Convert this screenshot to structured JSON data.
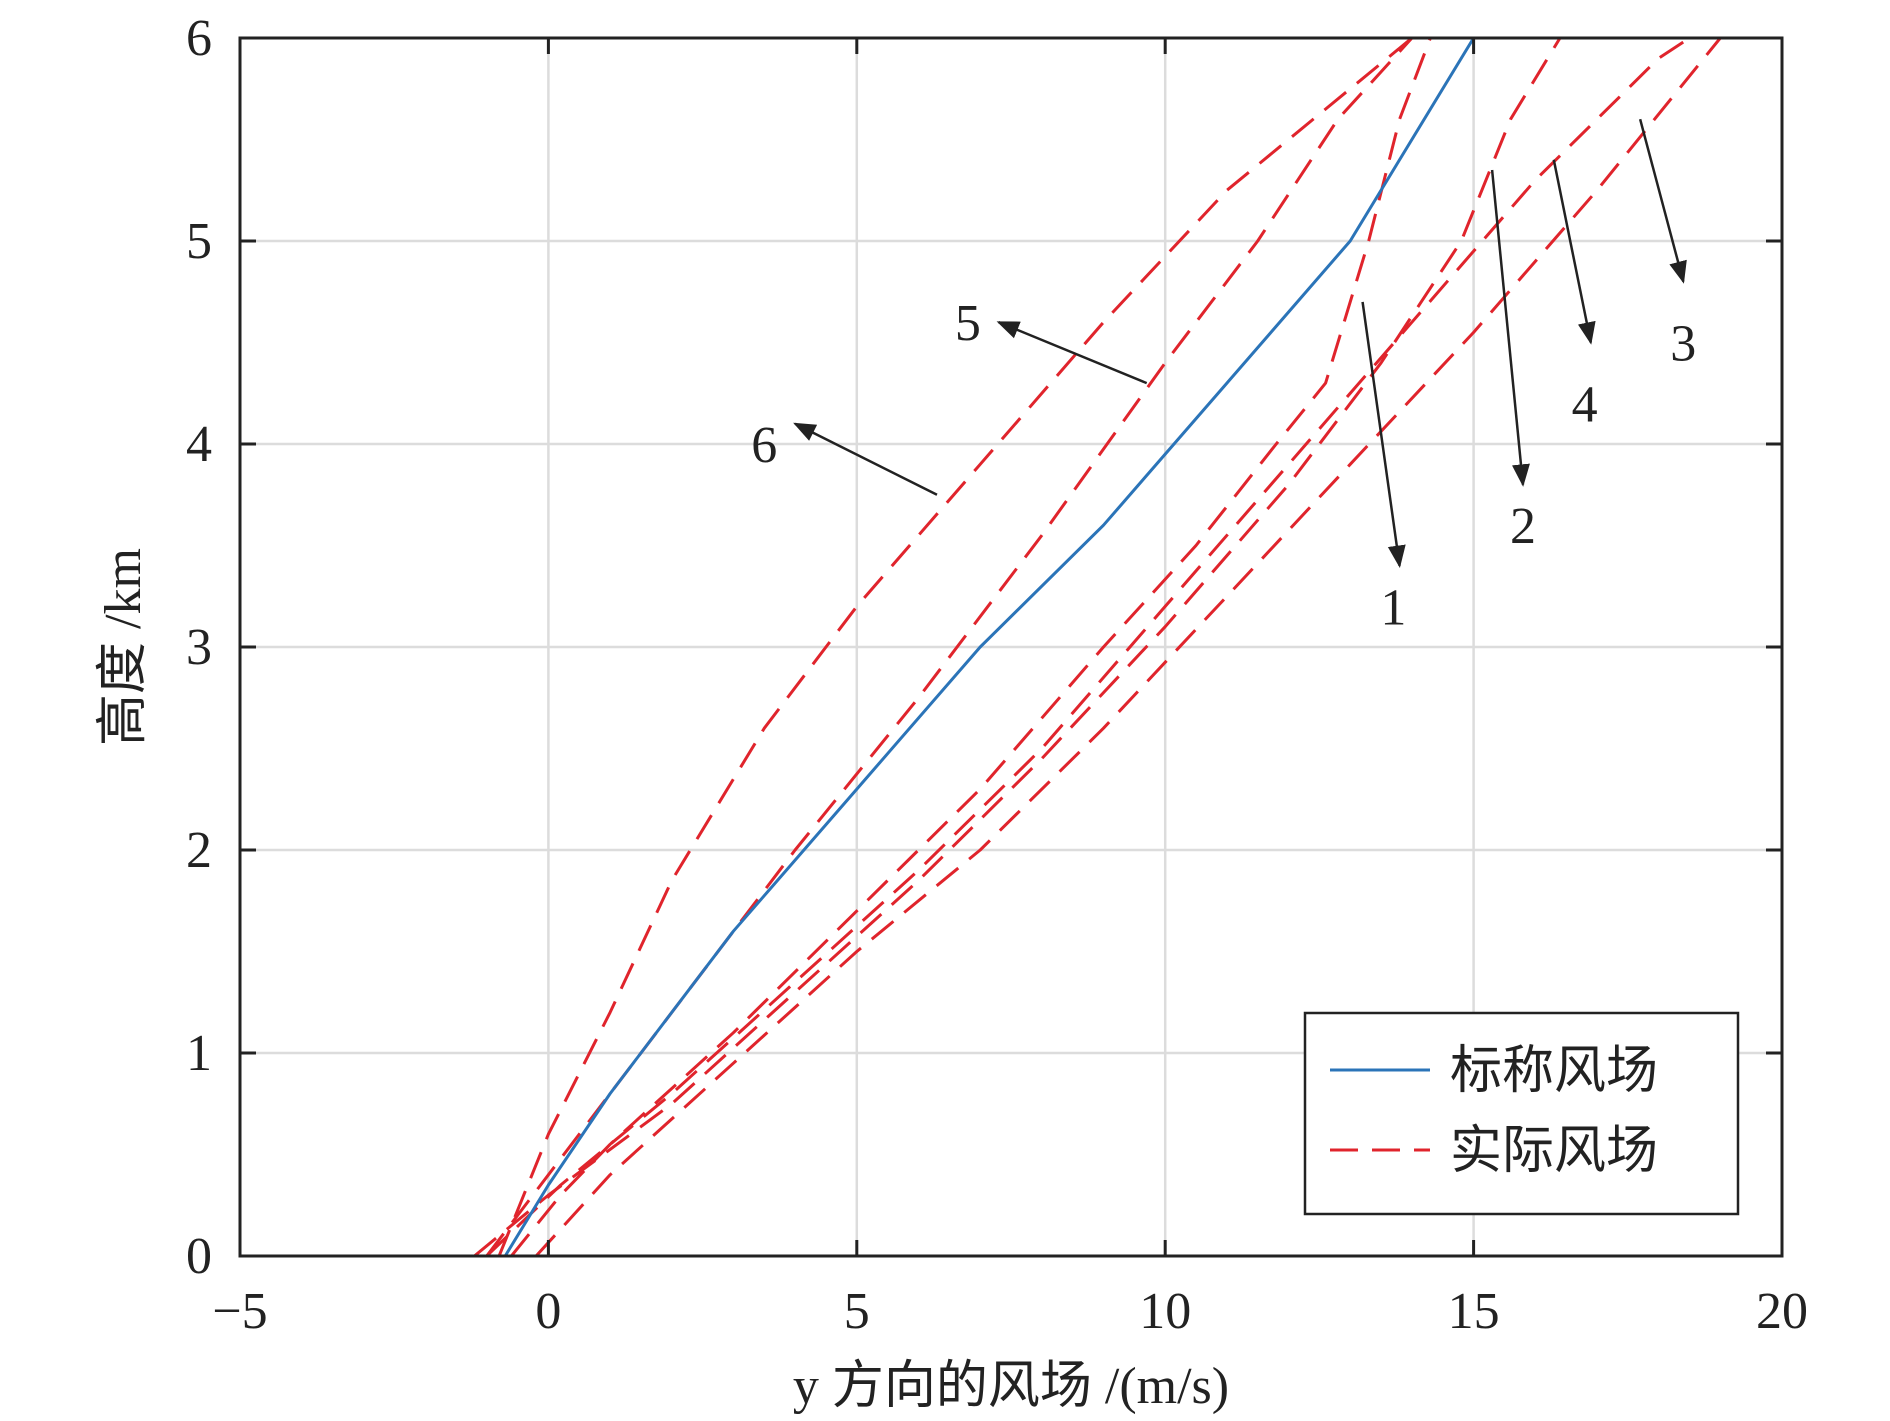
{
  "chart_data": {
    "type": "line",
    "xlabel": "y 方向的风场 /(m/s)",
    "ylabel": "高度 /km",
    "xlim": [
      -5,
      20
    ],
    "ylim": [
      0,
      6
    ],
    "xticks": [
      -5,
      0,
      5,
      10,
      15,
      20
    ],
    "yticks": [
      0,
      1,
      2,
      3,
      4,
      5,
      6
    ],
    "xtick_labels": [
      "−5",
      "0",
      "5",
      "10",
      "15",
      "20"
    ],
    "ytick_labels": [
      "0",
      "1",
      "2",
      "3",
      "4",
      "5",
      "6"
    ],
    "grid": true,
    "legend": {
      "position": "bottom-right",
      "entries": [
        {
          "label": "标称风场",
          "style": "solid",
          "color": "#2b74b8"
        },
        {
          "label": "实际风场",
          "style": "dashed",
          "color": "#e0242c"
        }
      ]
    },
    "series": [
      {
        "kind": "nominal",
        "style": "solid",
        "color": "#2b74b8",
        "points": [
          [
            -0.7,
            0
          ],
          [
            0.0,
            0.35
          ],
          [
            1.0,
            0.8
          ],
          [
            3.0,
            1.6
          ],
          [
            5.0,
            2.3
          ],
          [
            7.0,
            3.0
          ],
          [
            9.0,
            3.6
          ],
          [
            11.0,
            4.3
          ],
          [
            13.0,
            5.0
          ],
          [
            15.0,
            6.0
          ]
        ]
      },
      {
        "kind": "actual",
        "label": "1",
        "style": "dashed",
        "color": "#e0242c",
        "points": [
          [
            -0.6,
            0
          ],
          [
            0.2,
            0.3
          ],
          [
            1.0,
            0.55
          ],
          [
            3.0,
            1.1
          ],
          [
            5.0,
            1.7
          ],
          [
            7.0,
            2.3
          ],
          [
            9.0,
            3.0
          ],
          [
            10.5,
            3.5
          ],
          [
            11.8,
            4.0
          ],
          [
            12.6,
            4.3
          ],
          [
            13.3,
            5.0
          ],
          [
            13.8,
            5.6
          ],
          [
            14.3,
            6.0
          ]
        ]
      },
      {
        "kind": "actual",
        "label": "2",
        "style": "dashed",
        "color": "#e0242c",
        "points": [
          [
            -1.2,
            0
          ],
          [
            0.0,
            0.3
          ],
          [
            2.0,
            0.75
          ],
          [
            4.0,
            1.3
          ],
          [
            6.0,
            1.85
          ],
          [
            8.0,
            2.45
          ],
          [
            10.0,
            3.1
          ],
          [
            12.0,
            3.8
          ],
          [
            13.5,
            4.4
          ],
          [
            14.8,
            5.0
          ],
          [
            15.6,
            5.6
          ],
          [
            16.4,
            6.0
          ]
        ]
      },
      {
        "kind": "actual",
        "label": "3",
        "style": "dashed",
        "color": "#e0242c",
        "points": [
          [
            -0.2,
            0
          ],
          [
            1.0,
            0.4
          ],
          [
            3.0,
            0.95
          ],
          [
            5.0,
            1.5
          ],
          [
            7.0,
            2.0
          ],
          [
            9.0,
            2.6
          ],
          [
            11.0,
            3.25
          ],
          [
            13.0,
            3.9
          ],
          [
            15.0,
            4.55
          ],
          [
            17.0,
            5.25
          ],
          [
            19.0,
            6.0
          ]
        ]
      },
      {
        "kind": "actual",
        "label": "4",
        "style": "dashed",
        "color": "#e0242c",
        "points": [
          [
            -1.0,
            0
          ],
          [
            0.2,
            0.35
          ],
          [
            2.0,
            0.8
          ],
          [
            4.0,
            1.35
          ],
          [
            6.0,
            1.9
          ],
          [
            8.0,
            2.5
          ],
          [
            10.0,
            3.2
          ],
          [
            12.0,
            3.9
          ],
          [
            14.0,
            4.6
          ],
          [
            16.0,
            5.3
          ],
          [
            18.0,
            5.9
          ],
          [
            18.5,
            6.0
          ]
        ]
      },
      {
        "kind": "actual",
        "label": "5",
        "style": "dashed",
        "color": "#e0242c",
        "points": [
          [
            -1.0,
            0
          ],
          [
            0.0,
            0.4
          ],
          [
            2.0,
            1.2
          ],
          [
            4.0,
            2.0
          ],
          [
            6.0,
            2.75
          ],
          [
            8.0,
            3.55
          ],
          [
            10.0,
            4.4
          ],
          [
            11.5,
            5.0
          ],
          [
            12.8,
            5.6
          ],
          [
            14.0,
            6.0
          ]
        ]
      },
      {
        "kind": "actual",
        "label": "6",
        "style": "dashed",
        "color": "#e0242c",
        "points": [
          [
            -0.8,
            0
          ],
          [
            0.0,
            0.6
          ],
          [
            1.0,
            1.2
          ],
          [
            2.0,
            1.85
          ],
          [
            3.5,
            2.6
          ],
          [
            5.0,
            3.2
          ],
          [
            7.0,
            3.9
          ],
          [
            9.0,
            4.6
          ],
          [
            11.0,
            5.25
          ],
          [
            13.0,
            5.75
          ],
          [
            14.0,
            6.0
          ]
        ]
      }
    ],
    "annotations": [
      {
        "text": "1",
        "label_at": [
          13.7,
          3.2
        ],
        "arrow_from": [
          13.2,
          4.7
        ],
        "arrow_to": [
          13.8,
          3.4
        ]
      },
      {
        "text": "2",
        "label_at": [
          15.8,
          3.6
        ],
        "arrow_from": [
          15.3,
          5.35
        ],
        "arrow_to": [
          15.8,
          3.8
        ]
      },
      {
        "text": "3",
        "label_at": [
          18.4,
          4.5
        ],
        "arrow_from": [
          17.7,
          5.6
        ],
        "arrow_to": [
          18.4,
          4.8
        ]
      },
      {
        "text": "4",
        "label_at": [
          16.8,
          4.2
        ],
        "arrow_from": [
          16.3,
          5.4
        ],
        "arrow_to": [
          16.9,
          4.5
        ]
      },
      {
        "text": "5",
        "label_at": [
          6.8,
          4.6
        ],
        "arrow_from": [
          9.7,
          4.3
        ],
        "arrow_to": [
          7.3,
          4.6
        ]
      },
      {
        "text": "6",
        "label_at": [
          3.5,
          4.0
        ],
        "arrow_from": [
          6.3,
          3.75
        ],
        "arrow_to": [
          4.0,
          4.1
        ]
      }
    ]
  }
}
